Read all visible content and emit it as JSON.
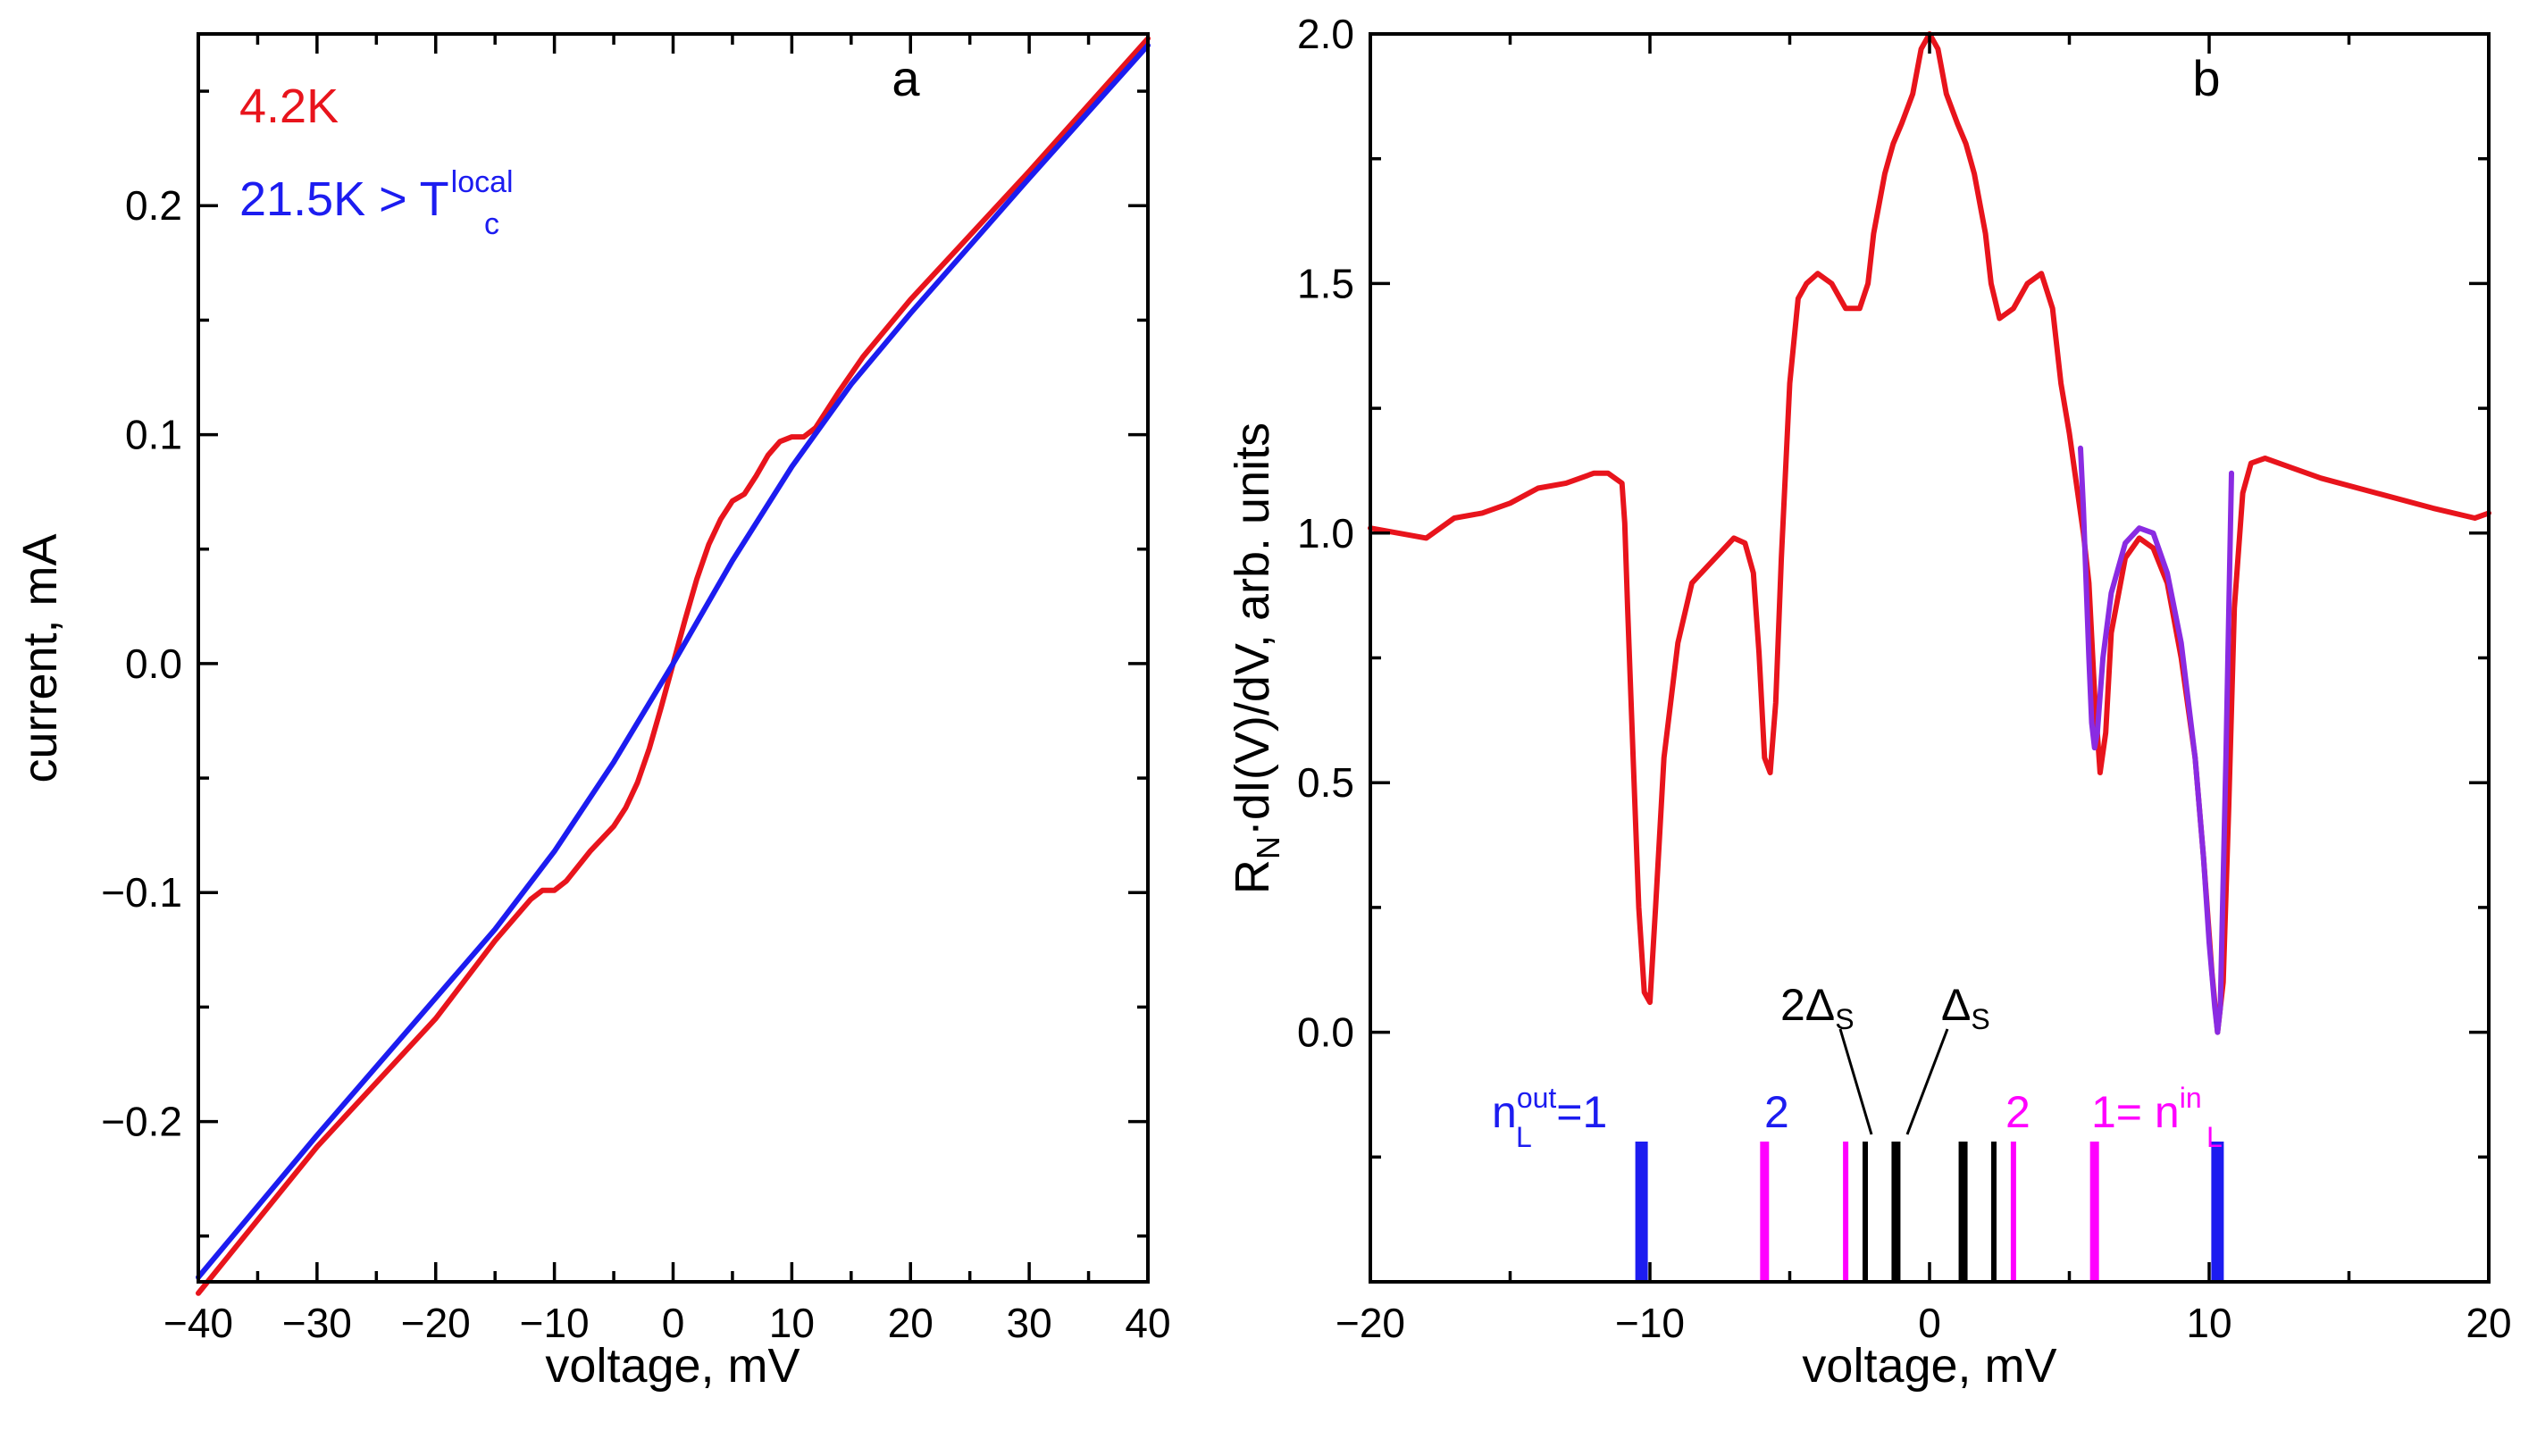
{
  "chart_data": [
    {
      "type": "line",
      "panel": "a",
      "xlabel": "voltage, mV",
      "ylabel": "current, mA",
      "xlim": [
        -40,
        40
      ],
      "ylim": [
        -0.27,
        0.275
      ],
      "xticks": [
        -40,
        -30,
        -20,
        -10,
        0,
        10,
        20,
        30,
        40
      ],
      "xtick_labels": [
        "−40",
        "−30",
        "−20",
        "−10",
        "0",
        "10",
        "20",
        "30",
        "40"
      ],
      "yticks": [
        -0.2,
        -0.1,
        0.0,
        0.1,
        0.2
      ],
      "ytick_labels": [
        "−0.2",
        "−0.1",
        "0.0",
        "0.1",
        "0.2"
      ],
      "grid": false,
      "legend_position": "top-left",
      "series": [
        {
          "name": "4.2K",
          "color": "#e8141c",
          "x": [
            -40,
            -30,
            -20,
            -15,
            -12,
            -11,
            -10,
            -9,
            -7,
            -5,
            -4,
            -3,
            -2,
            -1,
            0,
            1,
            2,
            3,
            4,
            5,
            6,
            7,
            8,
            9,
            10,
            11,
            12,
            14,
            16,
            20,
            30,
            40
          ],
          "y": [
            -0.275,
            -0.211,
            -0.155,
            -0.121,
            -0.103,
            -0.099,
            -0.099,
            -0.095,
            -0.082,
            -0.071,
            -0.063,
            -0.052,
            -0.037,
            -0.019,
            0.0,
            0.019,
            0.037,
            0.052,
            0.063,
            0.071,
            0.074,
            0.082,
            0.091,
            0.097,
            0.099,
            0.099,
            0.103,
            0.119,
            0.134,
            0.159,
            0.215,
            0.273
          ]
        },
        {
          "name": "21.5K > T",
          "name_sub": "c",
          "name_sup": "local",
          "color": "#1c1cf0",
          "x": [
            -40,
            -30,
            -20,
            -15,
            -10,
            -5,
            0,
            5,
            10,
            15,
            20,
            30,
            40
          ],
          "y": [
            -0.268,
            -0.206,
            -0.146,
            -0.116,
            -0.082,
            -0.043,
            0.0,
            0.045,
            0.086,
            0.122,
            0.153,
            0.212,
            0.27
          ]
        }
      ],
      "annotations": []
    },
    {
      "type": "line",
      "panel": "b",
      "xlabel": "voltage, mV",
      "ylabel": "R",
      "ylabel_sub": "N",
      "ylabel_rest": "·dI(V)/dV, arb. units",
      "xlim": [
        -20,
        20
      ],
      "ylim": [
        -0.5,
        2.0
      ],
      "xticks": [
        -20,
        -10,
        0,
        10,
        20
      ],
      "xtick_labels": [
        "−20",
        "−10",
        "0",
        "10",
        "20"
      ],
      "yticks": [
        0.0,
        0.5,
        1.0,
        1.5,
        2.0
      ],
      "ytick_labels": [
        "0.0",
        "0.5",
        "1.0",
        "1.5",
        "2.0"
      ],
      "grid": false,
      "series": [
        {
          "name": "",
          "color": "#e8141c",
          "x": [
            -20,
            -18,
            -17,
            -16,
            -15,
            -14,
            -13,
            -12,
            -11.5,
            -11,
            -10.9,
            -10.8,
            -10.6,
            -10.4,
            -10.2,
            -10.0,
            -9.8,
            -9.5,
            -9.0,
            -8.5,
            -8.0,
            -7.5,
            -7.0,
            -6.6,
            -6.3,
            -6.1,
            -5.9,
            -5.7,
            -5.5,
            -5.3,
            -5.0,
            -4.7,
            -4.4,
            -4.0,
            -3.5,
            -3.0,
            -2.5,
            -2.2,
            -2.0,
            -1.6,
            -1.3,
            -1.0,
            -0.6,
            -0.3,
            0,
            0.3,
            0.6,
            1.0,
            1.3,
            1.6,
            2.0,
            2.2,
            2.5,
            3.0,
            3.5,
            4.0,
            4.4,
            4.7,
            5.0,
            5.3,
            5.5,
            5.7,
            5.9,
            6.1,
            6.3,
            6.5,
            7.0,
            7.5,
            8.0,
            8.5,
            9.0,
            9.5,
            9.8,
            10.1,
            10.3,
            10.5,
            10.7,
            10.9,
            11.2,
            11.5,
            12.0,
            13.0,
            14.0,
            16.0,
            18.0,
            19.5,
            20
          ],
          "y": [
            1.01,
            0.99,
            1.03,
            1.04,
            1.06,
            1.09,
            1.1,
            1.12,
            1.12,
            1.1,
            1.02,
            0.85,
            0.55,
            0.25,
            0.08,
            0.06,
            0.25,
            0.55,
            0.78,
            0.9,
            0.93,
            0.96,
            0.99,
            0.98,
            0.92,
            0.76,
            0.55,
            0.52,
            0.66,
            0.95,
            1.3,
            1.47,
            1.5,
            1.52,
            1.5,
            1.45,
            1.45,
            1.5,
            1.6,
            1.72,
            1.78,
            1.82,
            1.88,
            1.97,
            2.0,
            1.97,
            1.88,
            1.82,
            1.78,
            1.72,
            1.6,
            1.5,
            1.43,
            1.45,
            1.5,
            1.52,
            1.45,
            1.3,
            1.2,
            1.08,
            1.0,
            0.9,
            0.68,
            0.52,
            0.6,
            0.8,
            0.95,
            0.99,
            0.97,
            0.9,
            0.75,
            0.55,
            0.35,
            0.12,
            0.0,
            0.1,
            0.45,
            0.85,
            1.08,
            1.14,
            1.15,
            1.13,
            1.11,
            1.08,
            1.05,
            1.03,
            1.04
          ]
        },
        {
          "name": "",
          "color": "#8a2be2",
          "x": [
            5.4,
            5.5,
            5.6,
            5.7,
            5.8,
            5.9,
            6.0,
            6.2,
            6.5,
            7.0,
            7.5,
            8.0,
            8.5,
            9.0,
            9.5,
            9.8,
            10.0,
            10.2,
            10.3,
            10.4,
            10.6,
            10.8
          ],
          "y": [
            1.17,
            1.05,
            0.9,
            0.75,
            0.62,
            0.57,
            0.6,
            0.75,
            0.88,
            0.98,
            1.01,
            1.0,
            0.92,
            0.78,
            0.55,
            0.35,
            0.18,
            0.05,
            0.0,
            0.05,
            0.55,
            1.12
          ]
        }
      ],
      "markers": [
        {
          "x": -10.3,
          "color": "#1c1cf0"
        },
        {
          "x": 10.3,
          "color": "#1c1cf0"
        },
        {
          "x": -5.9,
          "color": "#ff00ff"
        },
        {
          "x": 5.9,
          "color": "#ff00ff"
        },
        {
          "x": -3.0,
          "color": "#ff00ff"
        },
        {
          "x": 3.0,
          "color": "#ff00ff"
        },
        {
          "x": -2.3,
          "color": "#000000"
        },
        {
          "x": 2.3,
          "color": "#000000"
        },
        {
          "x": -1.2,
          "color": "#000000"
        },
        {
          "x": 1.2,
          "color": "#000000"
        }
      ],
      "annotations": {
        "n_out_base": "n",
        "n_out_sub": "L",
        "n_out_sup": "out",
        "n_out_tail": "=1",
        "blue_two": "2",
        "gap_2ds_main": "2Δ",
        "gap_2ds_sub": "S",
        "gap_ds_main": "Δ",
        "gap_ds_sub": "S",
        "magenta_two": "2",
        "n_in_head": "1= n",
        "n_in_sub": "L",
        "n_in_sup": "in"
      }
    }
  ]
}
